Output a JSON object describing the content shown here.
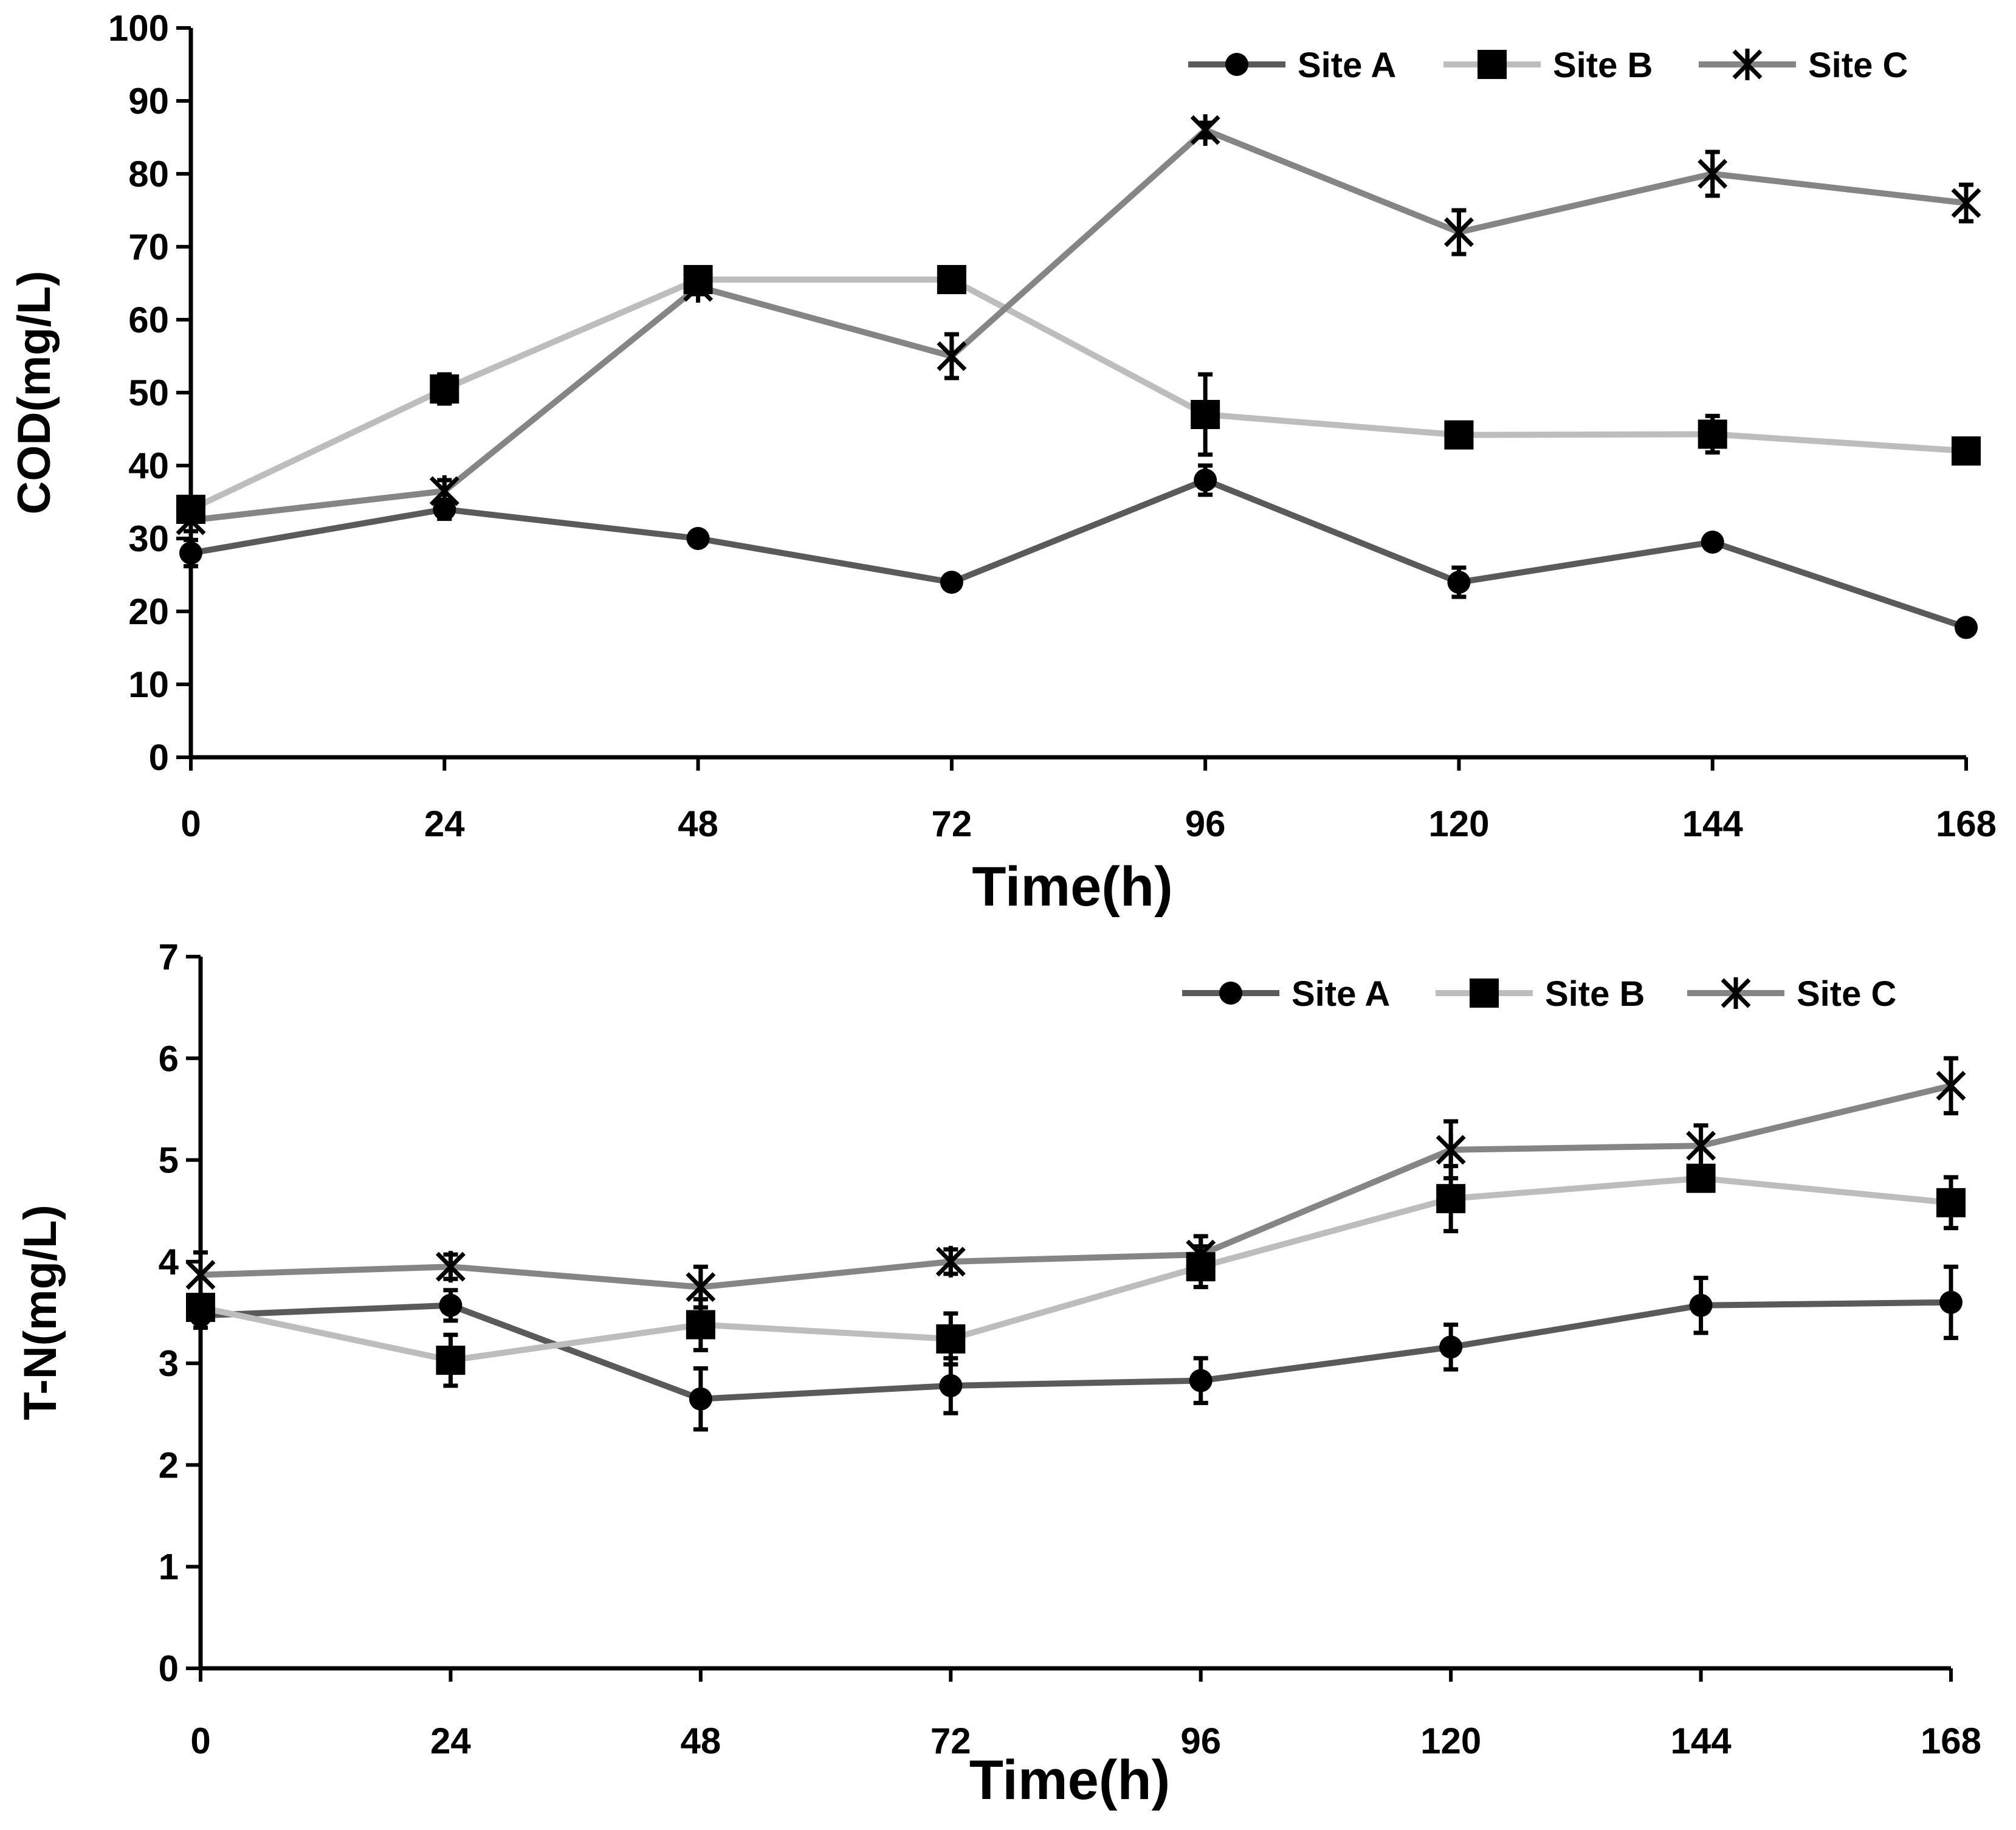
{
  "colors": {
    "axis": "#000000",
    "marker": "#000000",
    "error_bar": "#000000",
    "site_a_line": "#5a5a5a",
    "site_b_line": "#bdbdbd",
    "site_c_line": "#858585"
  },
  "chart_data": [
    {
      "type": "line",
      "xlabel": "Time(h)",
      "ylabel": "COD(mg/L)",
      "x": [
        0,
        24,
        48,
        72,
        96,
        120,
        144,
        168
      ],
      "x_tick_labels": [
        "0",
        "24",
        "48",
        "72",
        "96",
        "120",
        "144",
        "168"
      ],
      "y_tick_labels": [
        "0",
        "10",
        "20",
        "30",
        "40",
        "50",
        "60",
        "70",
        "80",
        "90",
        "100"
      ],
      "xlim": [
        0,
        168
      ],
      "ylim": [
        0,
        100
      ],
      "grid": false,
      "legend_position": "top-right",
      "series": [
        {
          "name": "Site A",
          "marker": "circle",
          "values": [
            28,
            34,
            30,
            24,
            38,
            24,
            29.5,
            17.8
          ],
          "errors": [
            1.8,
            1.3,
            0.8,
            0.6,
            2.0,
            2.0,
            0.8,
            0.7
          ]
        },
        {
          "name": "Site B",
          "marker": "square",
          "values": [
            34,
            50.5,
            65.5,
            65.5,
            47,
            44.2,
            44.3,
            42
          ],
          "errors": [
            1.5,
            2.0,
            1.0,
            1.0,
            5.5,
            1.0,
            2.5,
            1.0
          ]
        },
        {
          "name": "Site C",
          "marker": "x",
          "values": [
            32.5,
            36.5,
            64.5,
            55,
            86,
            72,
            80,
            76
          ],
          "errors": [
            1.5,
            1.5,
            1.0,
            3.0,
            1.0,
            3.0,
            3.0,
            2.5
          ]
        }
      ]
    },
    {
      "type": "line",
      "xlabel": "Time(h)",
      "ylabel": "T-N(mg/L)",
      "x": [
        0,
        24,
        48,
        72,
        96,
        120,
        144,
        168
      ],
      "x_tick_labels": [
        "0",
        "24",
        "48",
        "72",
        "96",
        "120",
        "144",
        "168"
      ],
      "y_tick_labels": [
        "0",
        "1",
        "2",
        "3",
        "4",
        "5",
        "6",
        "7"
      ],
      "xlim": [
        0,
        168
      ],
      "ylim": [
        0,
        7
      ],
      "grid": false,
      "legend_position": "top-right",
      "series": [
        {
          "name": "Site A",
          "marker": "circle",
          "values": [
            3.47,
            3.57,
            2.65,
            2.78,
            2.83,
            3.16,
            3.57,
            3.6
          ],
          "errors": [
            0.12,
            0.15,
            0.3,
            0.27,
            0.22,
            0.22,
            0.27,
            0.35
          ]
        },
        {
          "name": "Site B",
          "marker": "square",
          "values": [
            3.55,
            3.03,
            3.38,
            3.24,
            3.95,
            4.62,
            4.82,
            4.58
          ],
          "errors": [
            0.12,
            0.25,
            0.25,
            0.25,
            0.2,
            0.32,
            0.12,
            0.25
          ]
        },
        {
          "name": "Site C",
          "marker": "x",
          "values": [
            3.87,
            3.95,
            3.75,
            4.0,
            4.07,
            5.1,
            5.14,
            5.73
          ],
          "errors": [
            0.22,
            0.12,
            0.2,
            0.12,
            0.18,
            0.28,
            0.2,
            0.27
          ]
        }
      ]
    }
  ]
}
